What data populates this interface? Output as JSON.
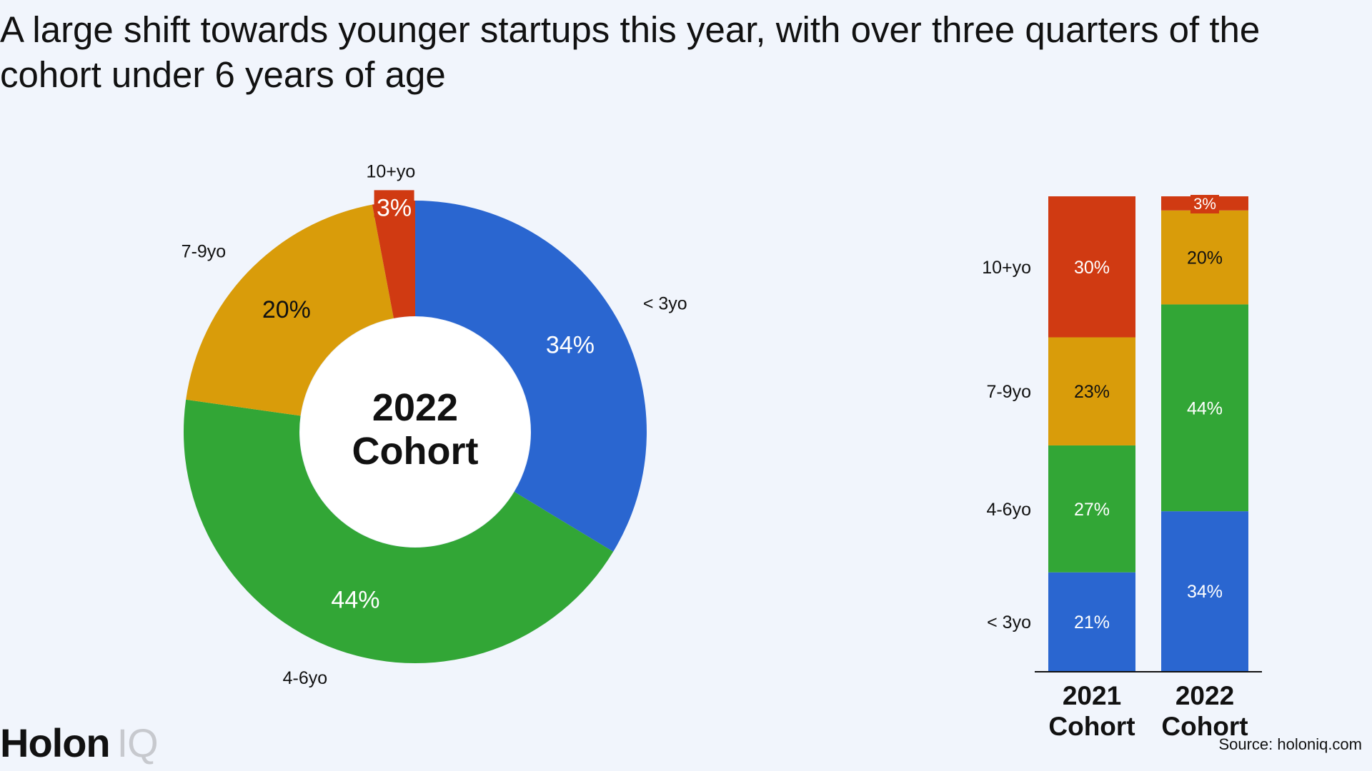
{
  "title": "A large shift towards younger startups this year, with over three quarters of the cohort under 6 years of age",
  "brand": {
    "name": "Holon",
    "suffix": "IQ"
  },
  "source": "Source: holoniq.com",
  "colors": {
    "under3": "#2A66D0",
    "4to6": "#32A636",
    "7to9": "#D99C0A",
    "10plus": "#D03A12"
  },
  "chart_data": [
    {
      "type": "pie",
      "variant": "donut",
      "center_label": [
        "2022",
        "Cohort"
      ],
      "slices": [
        {
          "label": "< 3yo",
          "value": 34,
          "value_label": "34%",
          "color": "#2A66D0"
        },
        {
          "label": "4-6yo",
          "value": 44,
          "value_label": "44%",
          "color": "#32A636"
        },
        {
          "label": "7-9yo",
          "value": 20,
          "value_label": "20%",
          "color": "#D99C0A"
        },
        {
          "label": "10+yo",
          "value": 3,
          "value_label": "3%",
          "color": "#D03A12"
        }
      ]
    },
    {
      "type": "bar",
      "variant": "stacked-100",
      "categories": [
        [
          "2021",
          "Cohort"
        ],
        [
          "2022",
          "Cohort"
        ]
      ],
      "segment_labels": [
        "< 3yo",
        "4-6yo",
        "7-9yo",
        "10+yo"
      ],
      "series": [
        {
          "name": "< 3yo",
          "values": [
            21,
            34
          ],
          "color": "#2A66D0"
        },
        {
          "name": "4-6yo",
          "values": [
            27,
            44
          ],
          "color": "#32A636"
        },
        {
          "name": "7-9yo",
          "values": [
            23,
            20
          ],
          "color": "#D99C0A"
        },
        {
          "name": "10+yo",
          "values": [
            30,
            3
          ],
          "color": "#D03A12"
        }
      ],
      "ylim": [
        0,
        101
      ]
    }
  ]
}
